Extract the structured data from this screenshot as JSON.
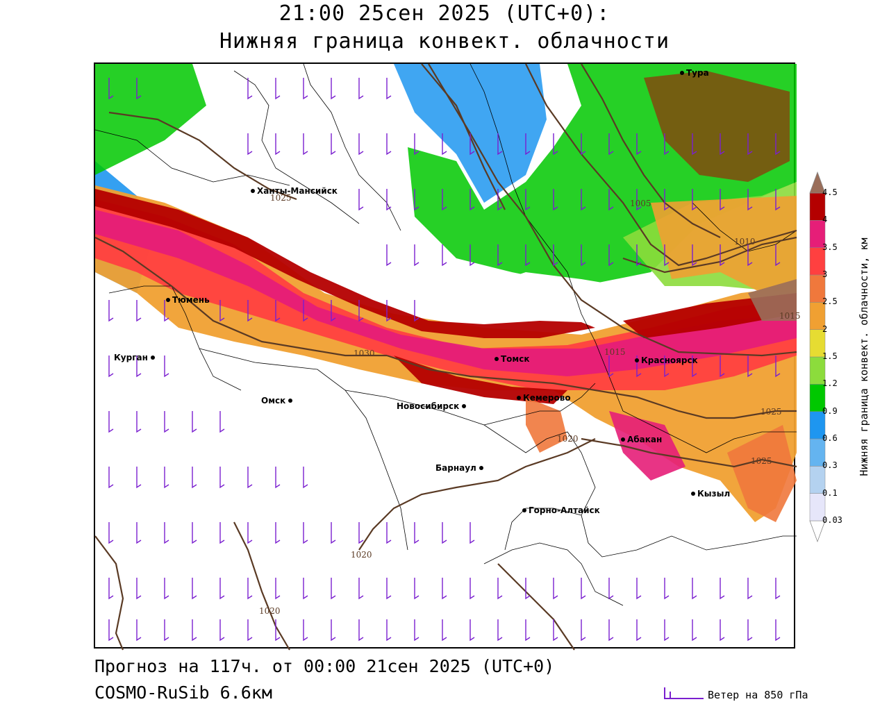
{
  "title": {
    "line1": "21:00 25сен 2025 (UTC+0):",
    "line2": "Нижняя граница конвект. облачности"
  },
  "footer": {
    "forecast": "Прогноз на 117ч. от 00:00 21сен 2025 (UTC+0)",
    "model": "COSMO-RuSib 6.6км",
    "wind_legend": "Ветер на 850 гПа"
  },
  "colorbar": {
    "title": "Нижняя граница конвект. облачности, км",
    "levels": [
      "0.03",
      "0.1",
      "0.3",
      "0.6",
      "0.9",
      "1.2",
      "1.5",
      "2",
      "2.5",
      "3",
      "3.5",
      "4",
      "4.5"
    ],
    "colors": [
      "#ffffff",
      "#e6e6fa",
      "#b4d2f0",
      "#64b4f0",
      "#1e96f0",
      "#00c800",
      "#8cdc3c",
      "#e6dc32",
      "#f0a032",
      "#f0783c",
      "#ff4040",
      "#e61e78",
      "#b40000",
      "#9a6e5a"
    ]
  },
  "cities": [
    {
      "name": "Тура"
    },
    {
      "name": "Ханты-Мансийск"
    },
    {
      "name": "Тюмень"
    },
    {
      "name": "Курган"
    },
    {
      "name": "Омск"
    },
    {
      "name": "Новосибирск"
    },
    {
      "name": "Томск"
    },
    {
      "name": "Кемерово"
    },
    {
      "name": "Красноярск"
    },
    {
      "name": "Абакан"
    },
    {
      "name": "Барнаул"
    },
    {
      "name": "Горно-Алтайск"
    },
    {
      "name": "Кызыл"
    }
  ],
  "isobars": [
    "1025",
    "1005",
    "1010",
    "1015",
    "1030",
    "1020",
    "1025",
    "1020",
    "1020",
    "1025",
    "1015"
  ]
}
